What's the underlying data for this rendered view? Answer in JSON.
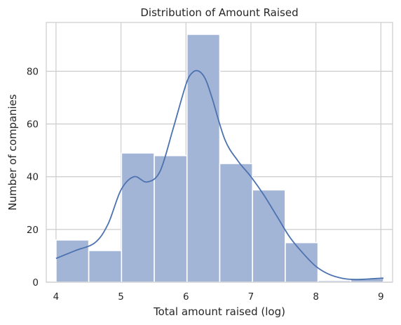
{
  "chart_data": {
    "type": "bar",
    "title": "Distribution of Amount Raised",
    "xlabel": "Total amount raised (log)",
    "ylabel": "Number of companies",
    "xlim": [
      3.85,
      9.18
    ],
    "ylim": [
      0,
      98.5
    ],
    "x_ticks": [
      4,
      5,
      6,
      7,
      8,
      9
    ],
    "y_ticks": [
      0,
      20,
      40,
      60,
      80
    ],
    "grid": true,
    "bin_edges": [
      4.0,
      4.504,
      5.008,
      5.512,
      6.016,
      6.52,
      7.024,
      7.528,
      8.032,
      8.536,
      9.04
    ],
    "values": [
      16,
      12,
      49,
      48,
      94,
      45,
      35,
      15,
      0.6,
      1.5
    ],
    "bar_color": "#a3b5d6",
    "kde": {
      "color": "#4c72b0",
      "x": [
        4.0,
        4.3,
        4.6,
        4.8,
        5.0,
        5.2,
        5.4,
        5.6,
        5.8,
        6.0,
        6.1,
        6.2,
        6.3,
        6.4,
        6.6,
        6.8,
        7.0,
        7.2,
        7.4,
        7.6,
        7.8,
        8.0,
        8.2,
        8.4,
        8.6,
        8.8,
        9.0,
        9.04
      ],
      "y": [
        9,
        12,
        15,
        22,
        35,
        40,
        38,
        42,
        58,
        75,
        79.5,
        80,
        77,
        70,
        54,
        46,
        40,
        33,
        25,
        17,
        11,
        6,
        3,
        1.5,
        1,
        1.2,
        1.5,
        1.5
      ]
    }
  }
}
